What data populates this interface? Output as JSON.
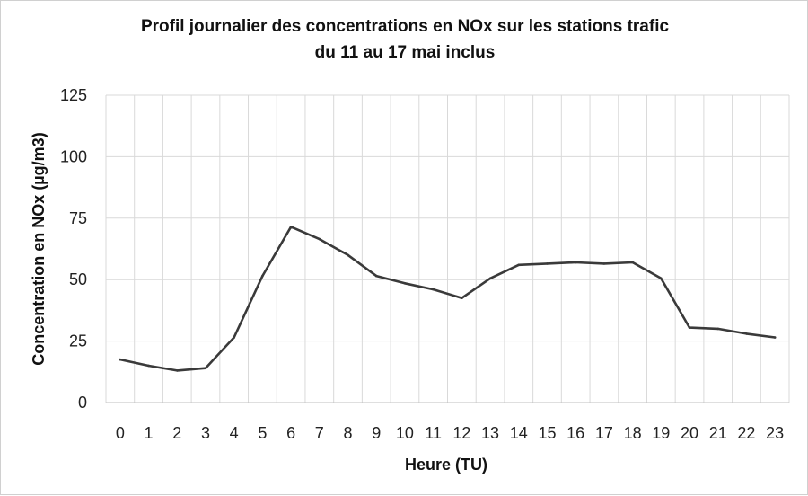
{
  "chart_data": {
    "type": "line",
    "title": "Profil journalier des concentrations en NOx sur les stations trafic",
    "subtitle": "du 11 au 17 mai inclus",
    "xlabel": "Heure (TU)",
    "ylabel": "Concentration en NOx (µg/m3)",
    "x": [
      0,
      1,
      2,
      3,
      4,
      5,
      6,
      7,
      8,
      9,
      10,
      11,
      12,
      13,
      14,
      15,
      16,
      17,
      18,
      19,
      20,
      21,
      22,
      23
    ],
    "series": [
      {
        "values": [
          17.5,
          15,
          13,
          14,
          26.5,
          51.5,
          71.5,
          66.5,
          60,
          51.5,
          48.5,
          46,
          42.5,
          50.5,
          56,
          56.5,
          57,
          56.5,
          57,
          50.5,
          30.5,
          30,
          28,
          26.5
        ],
        "color": "#3a3a3a"
      }
    ],
    "ylim": [
      0,
      125
    ],
    "yticks": [
      0,
      25,
      50,
      75,
      100,
      125
    ],
    "grid": true,
    "legend": "none"
  }
}
